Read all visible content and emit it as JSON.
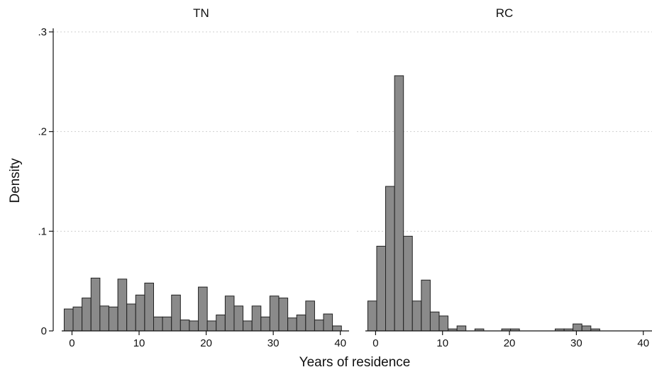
{
  "chart_data": {
    "type": "bar",
    "ylabel": "Density",
    "xlabel": "Years of residence",
    "yticks": [
      {
        "value": 0,
        "label": "0"
      },
      {
        "value": 0.1,
        "label": ".1"
      },
      {
        "value": 0.2,
        "label": ".2"
      },
      {
        "value": 0.3,
        "label": ".3"
      }
    ],
    "ylim": [
      0,
      0.3
    ],
    "xticks": [
      0,
      10,
      20,
      30,
      40
    ],
    "xlim": [
      -2.8,
      41.3
    ],
    "bin_width": 1.33,
    "grid": true,
    "panels": [
      {
        "title": "TN",
        "bin_centers": [
          -0.5,
          0.83,
          2.16,
          3.5,
          4.83,
          6.16,
          7.5,
          8.83,
          10.16,
          11.5,
          12.83,
          14.16,
          15.5,
          16.83,
          18.16,
          19.5,
          20.83,
          22.16,
          23.5,
          24.83,
          26.16,
          27.5,
          28.83,
          30.16,
          31.5,
          32.83,
          34.16,
          35.5,
          36.83,
          38.16,
          39.5
        ],
        "values": [
          0.022,
          0.024,
          0.033,
          0.053,
          0.025,
          0.024,
          0.052,
          0.027,
          0.036,
          0.048,
          0.014,
          0.014,
          0.036,
          0.011,
          0.01,
          0.044,
          0.01,
          0.016,
          0.035,
          0.025,
          0.01,
          0.025,
          0.014,
          0.035,
          0.033,
          0.013,
          0.016,
          0.03,
          0.011,
          0.017,
          0.005
        ]
      },
      {
        "title": "RC",
        "bin_centers": [
          -0.5,
          0.83,
          2.16,
          3.5,
          4.83,
          6.16,
          7.5,
          8.83,
          10.16,
          11.5,
          12.83,
          15.5,
          19.5,
          20.83,
          27.5,
          28.83,
          30.16,
          31.5,
          32.83
        ],
        "values": [
          0.03,
          0.085,
          0.145,
          0.256,
          0.095,
          0.03,
          0.051,
          0.019,
          0.015,
          0.002,
          0.005,
          0.002,
          0.002,
          0.002,
          0.002,
          0.002,
          0.007,
          0.005,
          0.002
        ]
      }
    ]
  }
}
